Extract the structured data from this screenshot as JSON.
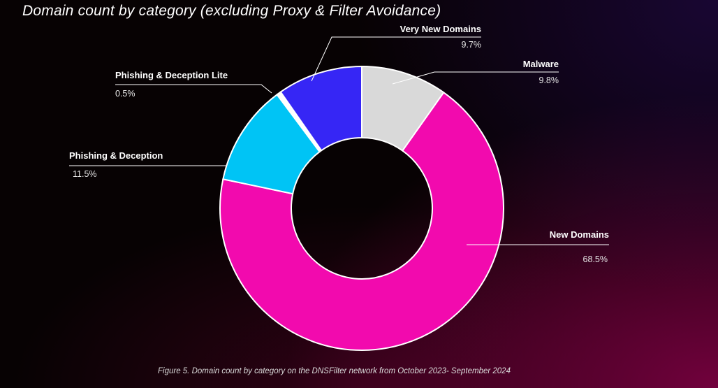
{
  "title": "Domain count by category (excluding Proxy & Filter Avoidance)",
  "caption": "Figure 5. Domain count by category on the DNSFilter network from October 2023- September 2024",
  "chart_data": {
    "type": "pie",
    "donut": true,
    "title": "Domain count by category (excluding Proxy & Filter Avoidance)",
    "series": [
      {
        "name": "Malware",
        "value": 9.8,
        "label": "9.8%",
        "color": "#d9d9d9"
      },
      {
        "name": "New Domains",
        "value": 68.5,
        "label": "68.5%",
        "color": "#f20aae"
      },
      {
        "name": "Phishing & Deception",
        "value": 11.5,
        "label": "11.5%",
        "color": "#00c4f5"
      },
      {
        "name": "Phishing & Deception Lite",
        "value": 0.5,
        "label": "0.5%",
        "color": "#ffffff"
      },
      {
        "name": "Very New Domains",
        "value": 9.7,
        "label": "9.7%",
        "color": "#3626f5"
      }
    ]
  }
}
